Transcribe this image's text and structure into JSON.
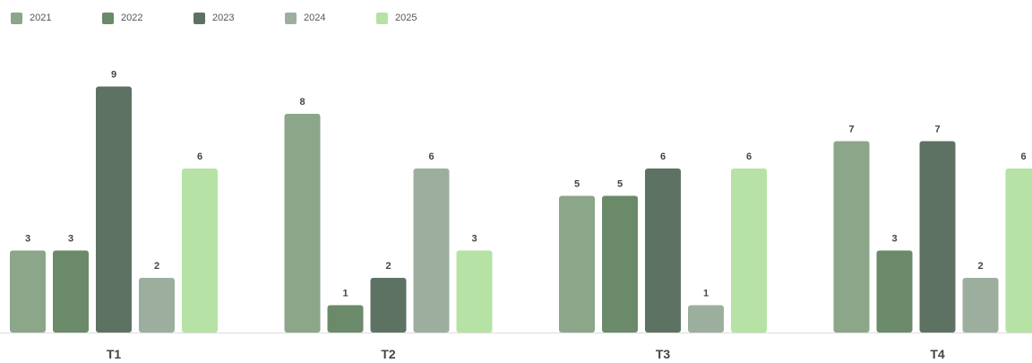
{
  "chart_data": {
    "type": "bar",
    "categories": [
      "T1",
      "T2",
      "T3",
      "T4"
    ],
    "series": [
      {
        "name": "2021",
        "values": [
          3,
          8,
          5,
          7
        ],
        "color": "#8ba688"
      },
      {
        "name": "2022",
        "values": [
          3,
          1,
          5,
          3
        ],
        "color": "#6a8a6a"
      },
      {
        "name": "2023",
        "values": [
          9,
          2,
          6,
          7
        ],
        "color": "#5e7264"
      },
      {
        "name": "2024",
        "values": [
          2,
          6,
          1,
          2
        ],
        "color": "#9caf9f"
      },
      {
        "name": "2025",
        "values": [
          6,
          3,
          6,
          6
        ],
        "color": "#b6e2a6"
      }
    ],
    "ylim": [
      0,
      9
    ],
    "grid": false,
    "legend_position": "top-left"
  }
}
